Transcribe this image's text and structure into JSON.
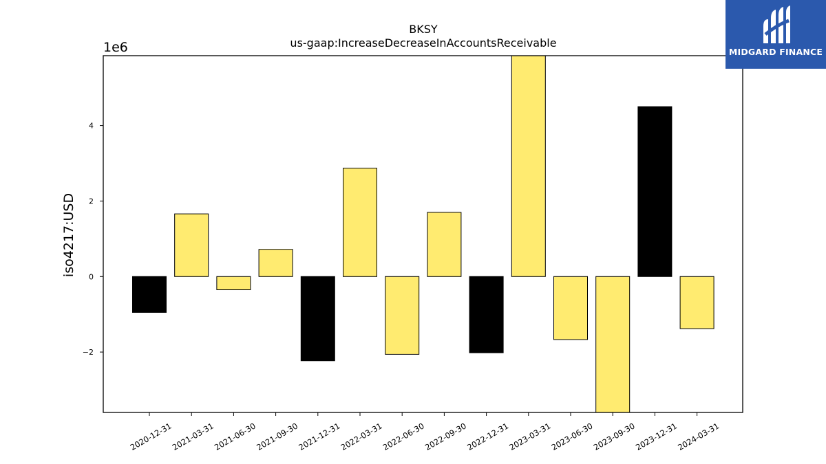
{
  "chart_data": {
    "type": "bar",
    "title": "BKSY",
    "subtitle": "us-gaap:IncreaseDecreaseInAccountsReceivable",
    "xlabel": "",
    "ylabel": "iso4217:USD",
    "y_multiplier_label": "1e6",
    "y_multiplier": 1000000,
    "ylim": [
      -3600000,
      5850000
    ],
    "yticks": [
      -2000000,
      0,
      2000000,
      4000000
    ],
    "ytick_labels": [
      "−2",
      "0",
      "2",
      "4"
    ],
    "grid": false,
    "categories": [
      "2020-12-31",
      "2021-03-31",
      "2021-06-30",
      "2021-09-30",
      "2021-12-31",
      "2022-03-31",
      "2022-06-30",
      "2022-09-30",
      "2022-12-31",
      "2023-03-31",
      "2023-06-30",
      "2023-09-30",
      "2023-12-31",
      "2024-03-31"
    ],
    "values": [
      -950000,
      1660000,
      -350000,
      720000,
      -2230000,
      2870000,
      -2060000,
      1700000,
      -2020000,
      6200000,
      -1670000,
      -4100000,
      4500000,
      -1380000
    ],
    "bar_colors": [
      "#000000",
      "#ffeb70",
      "#ffeb70",
      "#ffeb70",
      "#000000",
      "#ffeb70",
      "#ffeb70",
      "#ffeb70",
      "#000000",
      "#ffeb70",
      "#ffeb70",
      "#ffeb70",
      "#000000",
      "#ffeb70"
    ]
  },
  "logo": {
    "text": "MIDGARD FINANCE",
    "background": "#2b59ad"
  }
}
